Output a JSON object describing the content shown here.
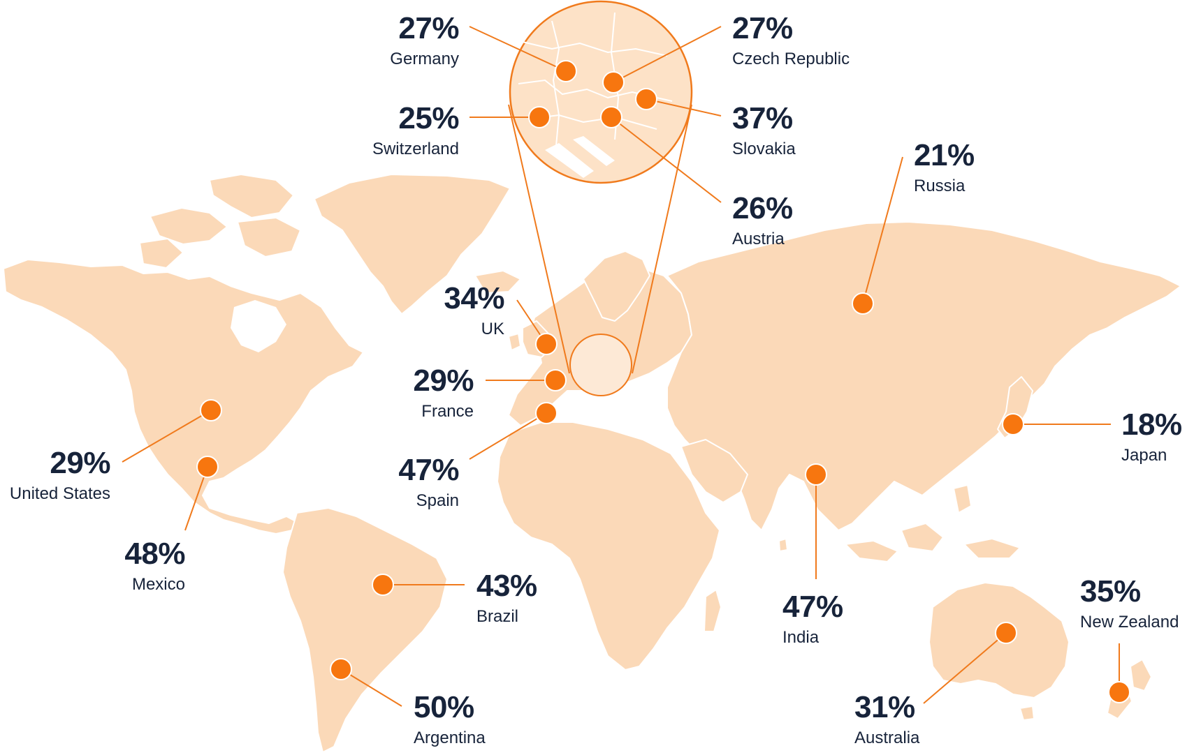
{
  "colors": {
    "land": "#fbd9b8",
    "accent": "#f7760f",
    "text": "#17233a",
    "background": "#ffffff"
  },
  "markers": [
    {
      "id": "germany",
      "country": "Germany",
      "value": "27%"
    },
    {
      "id": "czech-republic",
      "country": "Czech Republic",
      "value": "27%"
    },
    {
      "id": "switzerland",
      "country": "Switzerland",
      "value": "25%"
    },
    {
      "id": "slovakia",
      "country": "Slovakia",
      "value": "37%"
    },
    {
      "id": "austria",
      "country": "Austria",
      "value": "26%"
    },
    {
      "id": "russia",
      "country": "Russia",
      "value": "21%"
    },
    {
      "id": "uk",
      "country": "UK",
      "value": "34%"
    },
    {
      "id": "france",
      "country": "France",
      "value": "29%"
    },
    {
      "id": "spain",
      "country": "Spain",
      "value": "47%"
    },
    {
      "id": "japan",
      "country": "Japan",
      "value": "18%"
    },
    {
      "id": "united-states",
      "country": "United States",
      "value": "29%"
    },
    {
      "id": "mexico",
      "country": "Mexico",
      "value": "48%"
    },
    {
      "id": "brazil",
      "country": "Brazil",
      "value": "43%"
    },
    {
      "id": "india",
      "country": "India",
      "value": "47%"
    },
    {
      "id": "new-zealand",
      "country": "New Zealand",
      "value": "35%"
    },
    {
      "id": "argentina",
      "country": "Argentina",
      "value": "50%"
    },
    {
      "id": "australia",
      "country": "Australia",
      "value": "31%"
    }
  ]
}
